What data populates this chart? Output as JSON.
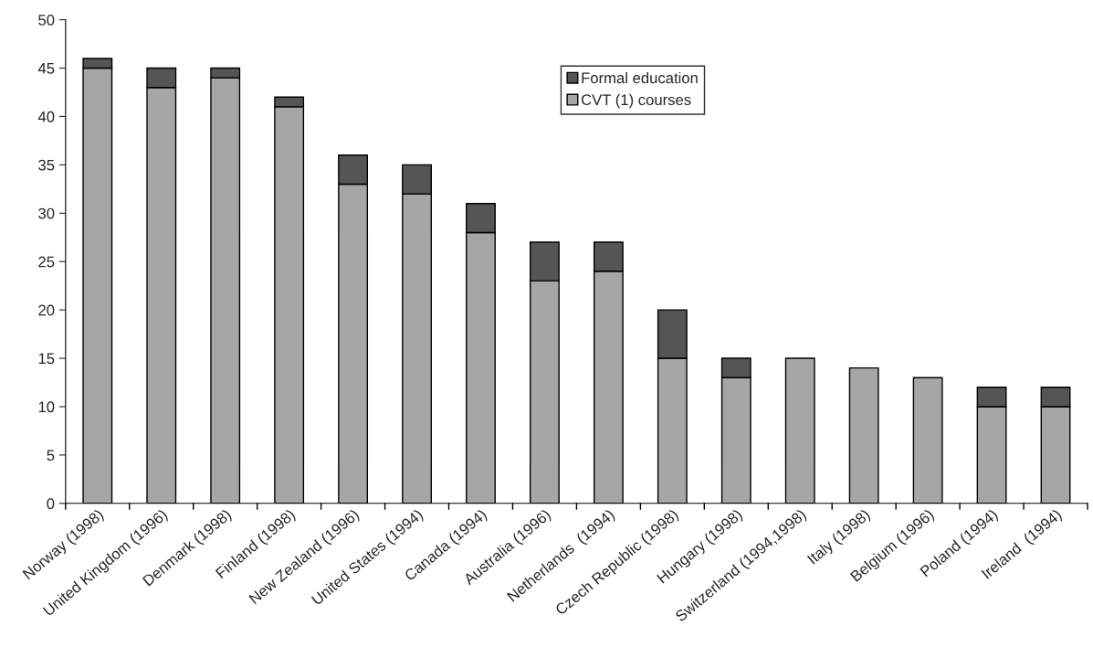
{
  "chart_data": {
    "type": "bar",
    "stacked": true,
    "categories": [
      "Norway (1998)",
      "United Kingdom (1996)",
      "Denmark (1998)",
      "Finland (1998)",
      "New Zealand (1996)",
      "United States (1994)",
      "Canada (1994)",
      "Australia (1996)",
      "Netherlands  (1994)",
      "Czech Republic (1998)",
      "Hungary (1998)",
      "Switzerland (1994,1998)",
      "Italy (1998)",
      "Belgium (1996)",
      "Poland (1994)",
      "Ireland  (1994)"
    ],
    "series": [
      {
        "name": "CVT (1) courses",
        "color": "#a6a6a6",
        "values": [
          45,
          43,
          44,
          41,
          33,
          32,
          28,
          23,
          24,
          15,
          13,
          15,
          14,
          13,
          10,
          10
        ]
      },
      {
        "name": "Formal education",
        "color": "#555555",
        "values": [
          1,
          2,
          1,
          1,
          3,
          3,
          3,
          4,
          3,
          5,
          2,
          null,
          null,
          null,
          2,
          2
        ]
      }
    ],
    "ylim": [
      0,
      50
    ],
    "yticks": [
      0,
      5,
      10,
      15,
      20,
      25,
      30,
      35,
      40,
      45,
      50
    ],
    "grid": false,
    "legend": "top center"
  }
}
